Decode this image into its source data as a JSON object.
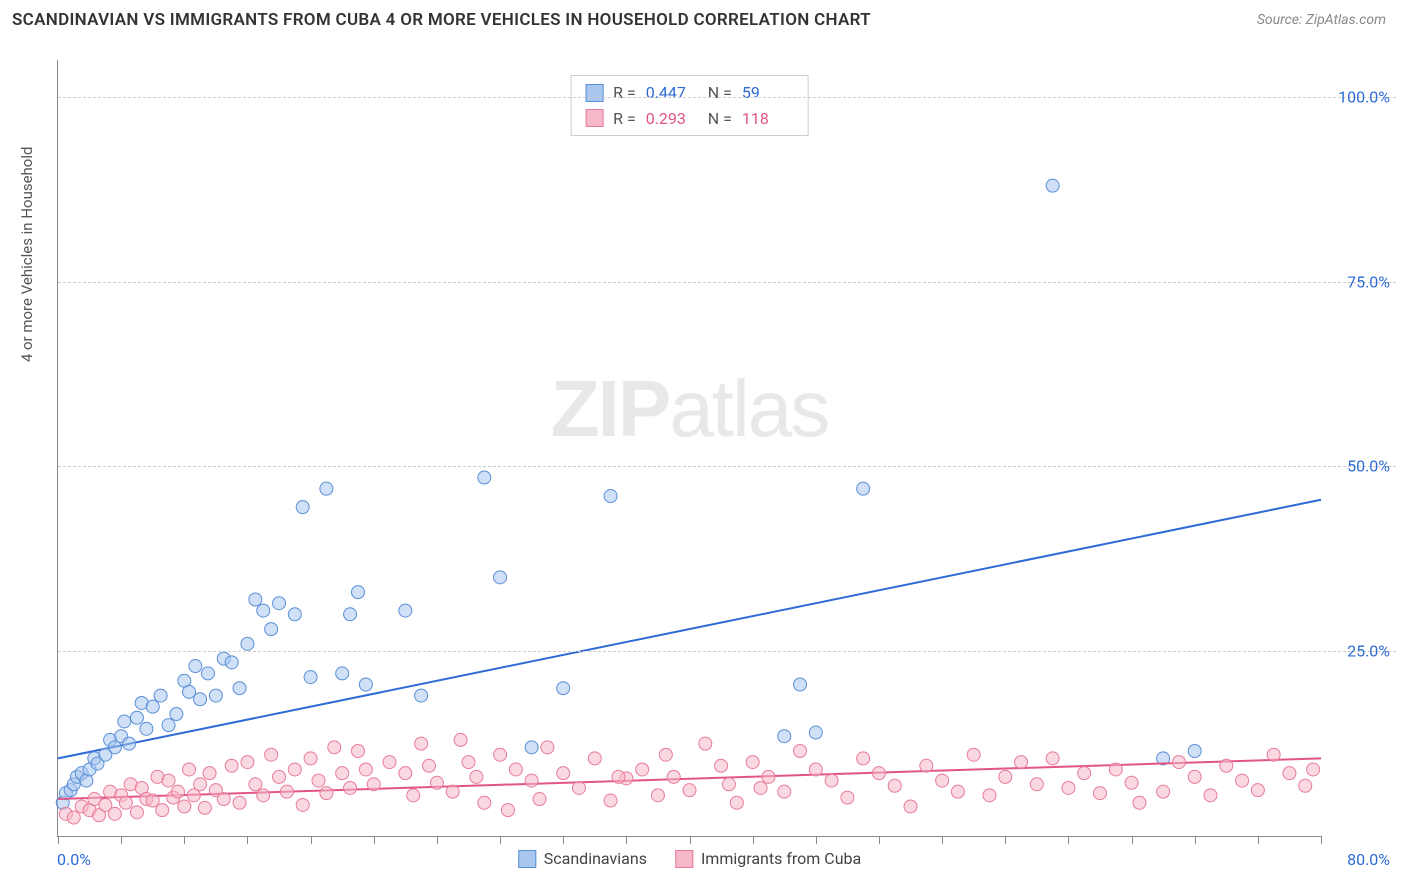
{
  "title": "SCANDINAVIAN VS IMMIGRANTS FROM CUBA 4 OR MORE VEHICLES IN HOUSEHOLD CORRELATION CHART",
  "source": "Source: ZipAtlas.com",
  "y_axis_label": "4 or more Vehicles in Household",
  "watermark_bold": "ZIP",
  "watermark_rest": "atlas",
  "chart": {
    "type": "scatter",
    "xlim": [
      0,
      80
    ],
    "ylim": [
      0,
      105
    ],
    "x_min_label": "0.0%",
    "x_max_label": "80.0%",
    "x_label_color": "#2e6bd6",
    "y_ticks": [
      25,
      50,
      75,
      100
    ],
    "y_tick_labels": [
      "25.0%",
      "50.0%",
      "75.0%",
      "100.0%"
    ],
    "y_label_color": "#2e6bd6",
    "x_tick_positions": [
      0,
      4,
      8,
      12,
      16,
      20,
      24,
      28,
      32,
      36,
      40,
      44,
      48,
      52,
      56,
      60,
      64,
      68,
      72,
      76,
      80
    ],
    "grid_color": "#cccccc",
    "background_color": "#ffffff",
    "marker_radius": 6.5,
    "marker_opacity": 0.55,
    "line_width": 2,
    "series": [
      {
        "name": "Scandinavians",
        "color_fill": "#a9c7ee",
        "color_stroke": "#5a8fd8",
        "R": "0.447",
        "N": "59",
        "stat_color": "#2e6bd6",
        "trend": {
          "x1": 0,
          "y1": 10.5,
          "x2": 80,
          "y2": 45.5,
          "color": "#2e6bd6"
        },
        "points": [
          [
            0.3,
            4.5
          ],
          [
            0.5,
            5.8
          ],
          [
            0.8,
            6.2
          ],
          [
            1,
            7
          ],
          [
            1.2,
            8
          ],
          [
            1.5,
            8.5
          ],
          [
            1.8,
            7.5
          ],
          [
            2,
            9
          ],
          [
            2.3,
            10.5
          ],
          [
            2.5,
            9.8
          ],
          [
            3,
            11
          ],
          [
            3.3,
            13
          ],
          [
            3.6,
            12
          ],
          [
            4,
            13.5
          ],
          [
            4.2,
            15.5
          ],
          [
            4.5,
            12.5
          ],
          [
            5,
            16
          ],
          [
            5.3,
            18
          ],
          [
            5.6,
            14.5
          ],
          [
            6,
            17.5
          ],
          [
            6.5,
            19
          ],
          [
            7,
            15
          ],
          [
            7.5,
            16.5
          ],
          [
            8,
            21
          ],
          [
            8.3,
            19.5
          ],
          [
            8.7,
            23
          ],
          [
            9,
            18.5
          ],
          [
            9.5,
            22
          ],
          [
            10,
            19
          ],
          [
            10.5,
            24
          ],
          [
            11,
            23.5
          ],
          [
            11.5,
            20
          ],
          [
            12,
            26
          ],
          [
            12.5,
            32
          ],
          [
            13,
            30.5
          ],
          [
            13.5,
            28
          ],
          [
            14,
            31.5
          ],
          [
            15,
            30
          ],
          [
            15.5,
            44.5
          ],
          [
            16,
            21.5
          ],
          [
            17,
            47
          ],
          [
            18,
            22
          ],
          [
            18.5,
            30
          ],
          [
            19,
            33
          ],
          [
            19.5,
            20.5
          ],
          [
            22,
            30.5
          ],
          [
            23,
            19
          ],
          [
            27,
            48.5
          ],
          [
            28,
            35
          ],
          [
            30,
            12
          ],
          [
            32,
            20
          ],
          [
            35,
            46
          ],
          [
            47,
            20.5
          ],
          [
            48,
            14
          ],
          [
            51,
            47
          ],
          [
            63,
            88
          ],
          [
            70,
            10.5
          ],
          [
            72,
            11.5
          ],
          [
            46,
            13.5
          ]
        ]
      },
      {
        "name": "Immigrants from Cuba",
        "color_fill": "#f6b8c8",
        "color_stroke": "#e87b9a",
        "R": "0.293",
        "N": "118",
        "stat_color": "#e25585",
        "trend": {
          "x1": 0,
          "y1": 5,
          "x2": 80,
          "y2": 10.5,
          "color": "#e25585"
        },
        "points": [
          [
            0.5,
            3
          ],
          [
            1,
            2.5
          ],
          [
            1.5,
            4
          ],
          [
            2,
            3.5
          ],
          [
            2.3,
            5
          ],
          [
            2.6,
            2.8
          ],
          [
            3,
            4.2
          ],
          [
            3.3,
            6
          ],
          [
            3.6,
            3
          ],
          [
            4,
            5.5
          ],
          [
            4.3,
            4.5
          ],
          [
            4.6,
            7
          ],
          [
            5,
            3.2
          ],
          [
            5.3,
            6.5
          ],
          [
            5.6,
            5
          ],
          [
            6,
            4.8
          ],
          [
            6.3,
            8
          ],
          [
            6.6,
            3.5
          ],
          [
            7,
            7.5
          ],
          [
            7.3,
            5.2
          ],
          [
            7.6,
            6
          ],
          [
            8,
            4
          ],
          [
            8.3,
            9
          ],
          [
            8.6,
            5.5
          ],
          [
            9,
            7
          ],
          [
            9.3,
            3.8
          ],
          [
            9.6,
            8.5
          ],
          [
            10,
            6.2
          ],
          [
            10.5,
            5
          ],
          [
            11,
            9.5
          ],
          [
            11.5,
            4.5
          ],
          [
            12,
            10
          ],
          [
            12.5,
            7
          ],
          [
            13,
            5.5
          ],
          [
            13.5,
            11
          ],
          [
            14,
            8
          ],
          [
            14.5,
            6
          ],
          [
            15,
            9
          ],
          [
            15.5,
            4.2
          ],
          [
            16,
            10.5
          ],
          [
            16.5,
            7.5
          ],
          [
            17,
            5.8
          ],
          [
            17.5,
            12
          ],
          [
            18,
            8.5
          ],
          [
            18.5,
            6.5
          ],
          [
            19,
            11.5
          ],
          [
            19.5,
            9
          ],
          [
            20,
            7
          ],
          [
            21,
            10
          ],
          [
            22,
            8.5
          ],
          [
            22.5,
            5.5
          ],
          [
            23,
            12.5
          ],
          [
            23.5,
            9.5
          ],
          [
            24,
            7.2
          ],
          [
            25,
            6
          ],
          [
            25.5,
            13
          ],
          [
            26,
            10
          ],
          [
            26.5,
            8
          ],
          [
            27,
            4.5
          ],
          [
            28,
            11
          ],
          [
            28.5,
            3.5
          ],
          [
            29,
            9
          ],
          [
            30,
            7.5
          ],
          [
            30.5,
            5
          ],
          [
            31,
            12
          ],
          [
            32,
            8.5
          ],
          [
            33,
            6.5
          ],
          [
            34,
            10.5
          ],
          [
            35,
            4.8
          ],
          [
            36,
            7.8
          ],
          [
            37,
            9
          ],
          [
            38,
            5.5
          ],
          [
            38.5,
            11
          ],
          [
            39,
            8
          ],
          [
            40,
            6.2
          ],
          [
            41,
            12.5
          ],
          [
            42,
            9.5
          ],
          [
            42.5,
            7
          ],
          [
            43,
            4.5
          ],
          [
            44,
            10
          ],
          [
            45,
            8
          ],
          [
            46,
            6
          ],
          [
            47,
            11.5
          ],
          [
            48,
            9
          ],
          [
            49,
            7.5
          ],
          [
            50,
            5.2
          ],
          [
            51,
            10.5
          ],
          [
            52,
            8.5
          ],
          [
            53,
            6.8
          ],
          [
            54,
            4
          ],
          [
            55,
            9.5
          ],
          [
            56,
            7.5
          ],
          [
            57,
            6
          ],
          [
            58,
            11
          ],
          [
            59,
            5.5
          ],
          [
            60,
            8
          ],
          [
            61,
            10
          ],
          [
            62,
            7
          ],
          [
            63,
            10.5
          ],
          [
            64,
            6.5
          ],
          [
            65,
            8.5
          ],
          [
            66,
            5.8
          ],
          [
            67,
            9
          ],
          [
            68,
            7.2
          ],
          [
            70,
            6
          ],
          [
            71,
            10
          ],
          [
            72,
            8
          ],
          [
            73,
            5.5
          ],
          [
            74,
            9.5
          ],
          [
            75,
            7.5
          ],
          [
            76,
            6.2
          ],
          [
            77,
            11
          ],
          [
            78,
            8.5
          ],
          [
            79,
            6.8
          ],
          [
            79.5,
            9
          ],
          [
            68.5,
            4.5
          ],
          [
            44.5,
            6.5
          ],
          [
            35.5,
            8
          ]
        ]
      }
    ]
  }
}
